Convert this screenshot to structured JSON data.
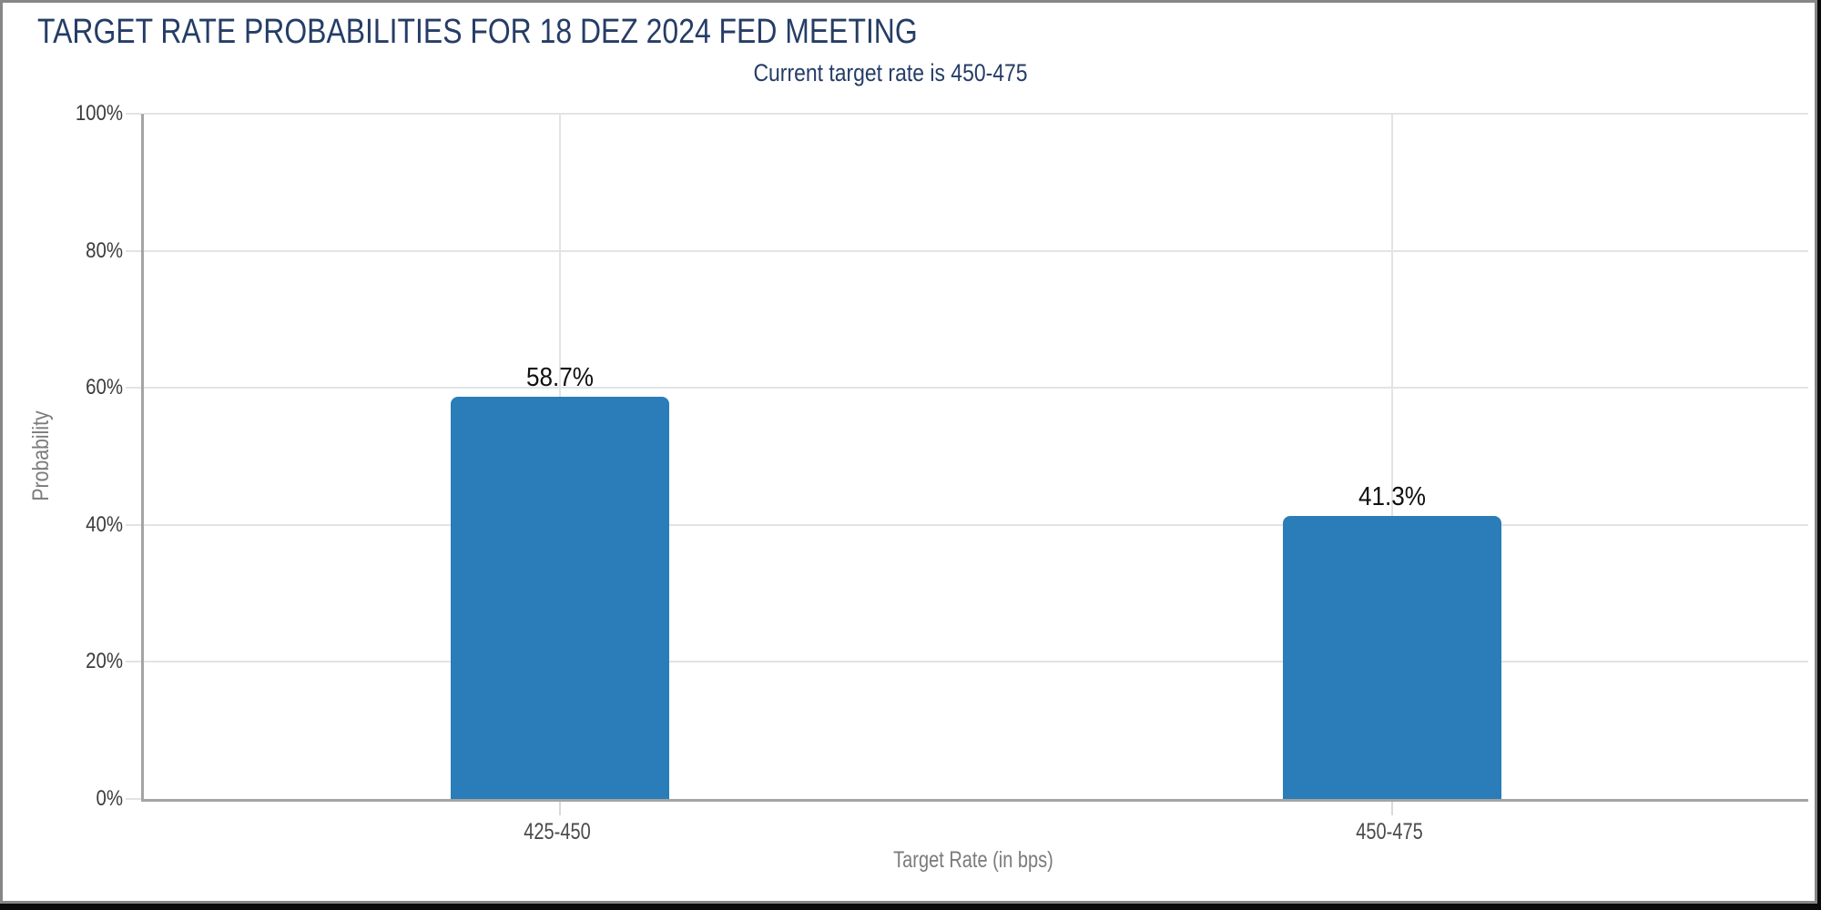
{
  "header": {
    "title": "TARGET RATE PROBABILITIES FOR 18 DEZ 2024 FED MEETING",
    "subtitle": "Current target rate is 450-475"
  },
  "chart_data": {
    "type": "bar",
    "title": "TARGET RATE PROBABILITIES FOR 18 DEZ 2024 FED MEETING",
    "subtitle": "Current target rate is 450-475",
    "categories": [
      "425-450",
      "450-475"
    ],
    "values": [
      58.7,
      41.3
    ],
    "value_labels": [
      "58.7%",
      "41.3%"
    ],
    "xlabel": "Target Rate (in bps)",
    "ylabel": "Probability",
    "ylim": [
      0,
      100
    ],
    "yticks": [
      0,
      20,
      40,
      60,
      80,
      100
    ],
    "ytick_labels": [
      "0%",
      "20%",
      "40%",
      "60%",
      "80%",
      "100%"
    ],
    "grid": true,
    "legend": "none",
    "bar_color": "#2A7DB8"
  },
  "colors": {
    "title_text": "#253D66",
    "bar_fill": "#2A7DB8",
    "gridline": "#E3E3E3",
    "axis_line": "#A4A4A4",
    "ytick_text": "#3C3C3C",
    "xtick_text": "#4A4A4A",
    "axis_title_text": "#7B7B7B",
    "value_label_text": "#111111",
    "frame_border": "#878787"
  }
}
